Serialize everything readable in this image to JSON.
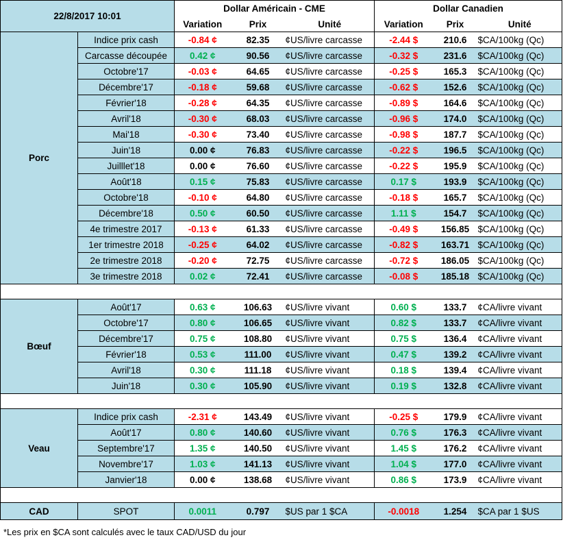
{
  "header": {
    "timestamp": "22/8/2017 10:01",
    "usd_section": "Dollar Américain - CME",
    "cad_section": "Dollar Canadien",
    "col_variation": "Variation",
    "col_prix": "Prix",
    "col_unite": "Unité"
  },
  "groups": [
    {
      "name": "Porc",
      "rows": [
        {
          "label": "Indice prix cash",
          "usd_var": "-0.84 ¢",
          "usd_var_color": "red",
          "usd_price": "82.35",
          "usd_unit": "¢US/livre carcasse",
          "cad_var": "-2.44 $",
          "cad_var_color": "red",
          "cad_price": "210.6",
          "cad_unit": "$CA/100kg (Qc)"
        },
        {
          "label": "Carcasse découpée",
          "usd_var": "0.42 ¢",
          "usd_var_color": "green",
          "usd_price": "90.56",
          "usd_unit": "¢US/livre carcasse",
          "cad_var": "-0.32 $",
          "cad_var_color": "red",
          "cad_price": "231.6",
          "cad_unit": "$CA/100kg (Qc)"
        },
        {
          "label": "Octobre'17",
          "usd_var": "-0.03 ¢",
          "usd_var_color": "red",
          "usd_price": "64.65",
          "usd_unit": "¢US/livre carcasse",
          "cad_var": "-0.25 $",
          "cad_var_color": "red",
          "cad_price": "165.3",
          "cad_unit": "$CA/100kg (Qc)"
        },
        {
          "label": "Décembre'17",
          "usd_var": "-0.18 ¢",
          "usd_var_color": "red",
          "usd_price": "59.68",
          "usd_unit": "¢US/livre carcasse",
          "cad_var": "-0.62 $",
          "cad_var_color": "red",
          "cad_price": "152.6",
          "cad_unit": "$CA/100kg (Qc)"
        },
        {
          "label": "Février'18",
          "usd_var": "-0.28 ¢",
          "usd_var_color": "red",
          "usd_price": "64.35",
          "usd_unit": "¢US/livre carcasse",
          "cad_var": "-0.89 $",
          "cad_var_color": "red",
          "cad_price": "164.6",
          "cad_unit": "$CA/100kg (Qc)"
        },
        {
          "label": "Avril'18",
          "usd_var": "-0.30 ¢",
          "usd_var_color": "red",
          "usd_price": "68.03",
          "usd_unit": "¢US/livre carcasse",
          "cad_var": "-0.96 $",
          "cad_var_color": "red",
          "cad_price": "174.0",
          "cad_unit": "$CA/100kg (Qc)"
        },
        {
          "label": "Mai'18",
          "usd_var": "-0.30 ¢",
          "usd_var_color": "red",
          "usd_price": "73.40",
          "usd_unit": "¢US/livre carcasse",
          "cad_var": "-0.98 $",
          "cad_var_color": "red",
          "cad_price": "187.7",
          "cad_unit": "$CA/100kg (Qc)"
        },
        {
          "label": "Juin'18",
          "usd_var": "0.00 ¢",
          "usd_var_color": "black",
          "usd_price": "76.83",
          "usd_unit": "¢US/livre carcasse",
          "cad_var": "-0.22 $",
          "cad_var_color": "red",
          "cad_price": "196.5",
          "cad_unit": "$CA/100kg (Qc)"
        },
        {
          "label": "Juilllet'18",
          "usd_var": "0.00 ¢",
          "usd_var_color": "black",
          "usd_price": "76.60",
          "usd_unit": "¢US/livre carcasse",
          "cad_var": "-0.22 $",
          "cad_var_color": "red",
          "cad_price": "195.9",
          "cad_unit": "$CA/100kg (Qc)"
        },
        {
          "label": "Août'18",
          "usd_var": "0.15 ¢",
          "usd_var_color": "green",
          "usd_price": "75.83",
          "usd_unit": "¢US/livre carcasse",
          "cad_var": "0.17 $",
          "cad_var_color": "green",
          "cad_price": "193.9",
          "cad_unit": "$CA/100kg (Qc)"
        },
        {
          "label": "Octobre'18",
          "usd_var": "-0.10 ¢",
          "usd_var_color": "red",
          "usd_price": "64.80",
          "usd_unit": "¢US/livre carcasse",
          "cad_var": "-0.18 $",
          "cad_var_color": "red",
          "cad_price": "165.7",
          "cad_unit": "$CA/100kg (Qc)"
        },
        {
          "label": "Décembre'18",
          "usd_var": "0.50 ¢",
          "usd_var_color": "green",
          "usd_price": "60.50",
          "usd_unit": "¢US/livre carcasse",
          "cad_var": "1.11 $",
          "cad_var_color": "green",
          "cad_price": "154.7",
          "cad_unit": "$CA/100kg (Qc)"
        },
        {
          "label": "4e trimestre 2017",
          "usd_var": "-0.13 ¢",
          "usd_var_color": "red",
          "usd_price": "61.33",
          "usd_unit": "¢US/livre carcasse",
          "cad_var": "-0.49 $",
          "cad_var_color": "red",
          "cad_price": "156.85",
          "cad_unit": "$CA/100kg (Qc)"
        },
        {
          "label": "1er trimestre 2018",
          "usd_var": "-0.25 ¢",
          "usd_var_color": "red",
          "usd_price": "64.02",
          "usd_unit": "¢US/livre carcasse",
          "cad_var": "-0.82 $",
          "cad_var_color": "red",
          "cad_price": "163.71",
          "cad_unit": "$CA/100kg (Qc)"
        },
        {
          "label": "2e trimestre 2018",
          "usd_var": "-0.20 ¢",
          "usd_var_color": "red",
          "usd_price": "72.75",
          "usd_unit": "¢US/livre carcasse",
          "cad_var": "-0.72 $",
          "cad_var_color": "red",
          "cad_price": "186.05",
          "cad_unit": "$CA/100kg (Qc)"
        },
        {
          "label": "3e trimestre 2018",
          "usd_var": "0.02 ¢",
          "usd_var_color": "green",
          "usd_price": "72.41",
          "usd_unit": "¢US/livre carcasse",
          "cad_var": "-0.08 $",
          "cad_var_color": "red",
          "cad_price": "185.18",
          "cad_unit": "$CA/100kg (Qc)"
        }
      ]
    },
    {
      "name": "Bœuf",
      "rows": [
        {
          "label": "Août'17",
          "usd_var": "0.63 ¢",
          "usd_var_color": "green",
          "usd_price": "106.63",
          "usd_unit": "¢US/livre vivant",
          "cad_var": "0.60 $",
          "cad_var_color": "green",
          "cad_price": "133.7",
          "cad_unit": "¢CA/livre vivant"
        },
        {
          "label": "Octobre'17",
          "usd_var": "0.80 ¢",
          "usd_var_color": "green",
          "usd_price": "106.65",
          "usd_unit": "¢US/livre vivant",
          "cad_var": "0.82 $",
          "cad_var_color": "green",
          "cad_price": "133.7",
          "cad_unit": "¢CA/livre vivant"
        },
        {
          "label": "Décembre'17",
          "usd_var": "0.75 ¢",
          "usd_var_color": "green",
          "usd_price": "108.80",
          "usd_unit": "¢US/livre vivant",
          "cad_var": "0.75 $",
          "cad_var_color": "green",
          "cad_price": "136.4",
          "cad_unit": "¢CA/livre vivant"
        },
        {
          "label": "Février'18",
          "usd_var": "0.53 ¢",
          "usd_var_color": "green",
          "usd_price": "111.00",
          "usd_unit": "¢US/livre vivant",
          "cad_var": "0.47 $",
          "cad_var_color": "green",
          "cad_price": "139.2",
          "cad_unit": "¢CA/livre vivant"
        },
        {
          "label": "Avril'18",
          "usd_var": "0.30 ¢",
          "usd_var_color": "green",
          "usd_price": "111.18",
          "usd_unit": "¢US/livre vivant",
          "cad_var": "0.18 $",
          "cad_var_color": "green",
          "cad_price": "139.4",
          "cad_unit": "¢CA/livre vivant"
        },
        {
          "label": "Juin'18",
          "usd_var": "0.30 ¢",
          "usd_var_color": "green",
          "usd_price": "105.90",
          "usd_unit": "¢US/livre vivant",
          "cad_var": "0.19 $",
          "cad_var_color": "green",
          "cad_price": "132.8",
          "cad_unit": "¢CA/livre vivant"
        }
      ]
    },
    {
      "name": "Veau",
      "rows": [
        {
          "label": "Indice prix cash",
          "usd_var": "-2.31 ¢",
          "usd_var_color": "red",
          "usd_price": "143.49",
          "usd_unit": "¢US/livre vivant",
          "cad_var": "-0.25 $",
          "cad_var_color": "red",
          "cad_price": "179.9",
          "cad_unit": "¢CA/livre vivant"
        },
        {
          "label": "Août'17",
          "usd_var": "0.80 ¢",
          "usd_var_color": "green",
          "usd_price": "140.60",
          "usd_unit": "¢US/livre vivant",
          "cad_var": "0.76 $",
          "cad_var_color": "green",
          "cad_price": "176.3",
          "cad_unit": "¢CA/livre vivant"
        },
        {
          "label": "Septembre'17",
          "usd_var": "1.35 ¢",
          "usd_var_color": "green",
          "usd_price": "140.50",
          "usd_unit": "¢US/livre vivant",
          "cad_var": "1.45 $",
          "cad_var_color": "green",
          "cad_price": "176.2",
          "cad_unit": "¢CA/livre vivant"
        },
        {
          "label": "Novembre'17",
          "usd_var": "1.03 ¢",
          "usd_var_color": "green",
          "usd_price": "141.13",
          "usd_unit": "¢US/livre vivant",
          "cad_var": "1.04 $",
          "cad_var_color": "green",
          "cad_price": "177.0",
          "cad_unit": "¢CA/livre vivant"
        },
        {
          "label": "Janvier'18",
          "usd_var": "0.00 ¢",
          "usd_var_color": "black",
          "usd_price": "138.68",
          "usd_unit": "¢US/livre vivant",
          "cad_var": "0.86 $",
          "cad_var_color": "green",
          "cad_price": "173.9",
          "cad_unit": "¢CA/livre vivant"
        }
      ]
    }
  ],
  "cad": {
    "name": "CAD",
    "label": "SPOT",
    "usd_var": "0.0011",
    "usd_var_color": "green",
    "usd_price": "0.797",
    "usd_unit": "$US par 1 $CA",
    "cad_var": "-0.0018",
    "cad_var_color": "red",
    "cad_price": "1.254",
    "cad_unit": "$CA par 1 $US"
  },
  "footnote": "*Les  prix en $CA sont calculés avec le taux CAD/USD du jour"
}
